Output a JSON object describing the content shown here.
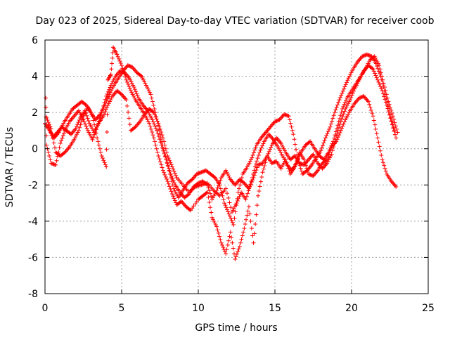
{
  "chart_data": {
    "type": "scatter",
    "title": "Day 023 of 2025, Sidereal Day-to-day VTEC variation (SDTVAR) for receiver coob",
    "xlabel": "GPS time / hours",
    "ylabel": "SDTVAR / TECUs",
    "xlim": [
      0,
      25
    ],
    "ylim": [
      -8,
      6
    ],
    "x_ticks": [
      0,
      5,
      10,
      15,
      20,
      25
    ],
    "y_ticks": [
      -8,
      -6,
      -4,
      -2,
      0,
      2,
      4,
      6
    ],
    "x_tick_labels": [
      "0",
      "5",
      "10",
      "15",
      "20",
      "25"
    ],
    "y_tick_labels": [
      "-8",
      "-6",
      "-4",
      "-2",
      "0",
      "2",
      "4",
      "6"
    ],
    "grid": true,
    "legend": "none",
    "marker": "+",
    "color": "#ff0000",
    "series": [
      {
        "values": [
          [
            0.0,
            1.4
          ],
          [
            0.3,
            1.0
          ],
          [
            0.6,
            0.6
          ],
          [
            0.9,
            0.9
          ],
          [
            1.2,
            1.4
          ],
          [
            1.5,
            1.8
          ],
          [
            1.8,
            2.2
          ],
          [
            2.1,
            2.4
          ],
          [
            2.4,
            2.6
          ],
          [
            2.7,
            2.4
          ],
          [
            3.0,
            2.0
          ],
          [
            3.3,
            1.6
          ],
          [
            3.6,
            1.9
          ],
          [
            3.9,
            2.4
          ],
          [
            4.2,
            3.0
          ],
          [
            4.5,
            3.5
          ],
          [
            4.8,
            3.9
          ],
          [
            5.1,
            4.3
          ],
          [
            5.4,
            4.6
          ],
          [
            5.7,
            4.5
          ],
          [
            6.0,
            4.2
          ],
          [
            6.3,
            4.0
          ],
          [
            6.6,
            3.5
          ],
          [
            6.9,
            3.0
          ],
          [
            7.2,
            2.0
          ],
          [
            7.5,
            0.8
          ],
          [
            7.8,
            -0.2
          ],
          [
            8.1,
            -1.2
          ],
          [
            8.4,
            -2.2
          ],
          [
            8.7,
            -2.7
          ],
          [
            9.0,
            -2.3
          ],
          [
            9.3,
            -1.9
          ],
          [
            9.6,
            -1.7
          ],
          [
            9.9,
            -1.4
          ],
          [
            10.2,
            -1.3
          ],
          [
            10.5,
            -1.2
          ],
          [
            10.8,
            -1.4
          ],
          [
            11.1,
            -1.6
          ],
          [
            11.4,
            -2.0
          ],
          [
            11.7,
            -3.0
          ],
          [
            12.0,
            -3.6
          ],
          [
            12.3,
            -4.2
          ],
          [
            12.6,
            -2.4
          ],
          [
            12.9,
            -1.4
          ],
          [
            13.2,
            -1.0
          ],
          [
            13.5,
            -0.5
          ],
          [
            13.8,
            0.2
          ],
          [
            14.1,
            0.6
          ],
          [
            14.4,
            0.9
          ],
          [
            14.7,
            1.2
          ],
          [
            15.0,
            1.5
          ],
          [
            15.3,
            1.6
          ],
          [
            15.6,
            1.9
          ],
          [
            15.9,
            1.8
          ],
          [
            16.2,
            0.8
          ],
          [
            16.5,
            -0.6
          ],
          [
            16.8,
            -1.4
          ],
          [
            17.1,
            -1.2
          ],
          [
            17.4,
            -0.9
          ],
          [
            17.7,
            -0.5
          ],
          [
            18.0,
            -0.1
          ],
          [
            18.3,
            0.6
          ],
          [
            18.6,
            1.2
          ],
          [
            18.9,
            2.0
          ],
          [
            19.2,
            2.7
          ],
          [
            19.5,
            3.3
          ],
          [
            19.8,
            3.9
          ],
          [
            20.1,
            4.4
          ],
          [
            20.4,
            4.8
          ],
          [
            20.7,
            5.1
          ],
          [
            21.0,
            5.2
          ],
          [
            21.3,
            5.1
          ],
          [
            21.6,
            4.7
          ],
          [
            21.9,
            4.0
          ],
          [
            22.2,
            3.0
          ],
          [
            22.5,
            1.9
          ],
          [
            22.8,
            1.0
          ]
        ]
      },
      {
        "values": [
          [
            0.1,
            1.7
          ],
          [
            0.4,
            1.1
          ],
          [
            0.7,
            -0.2
          ],
          [
            1.0,
            -0.4
          ],
          [
            1.3,
            -0.2
          ],
          [
            1.6,
            0.1
          ],
          [
            1.9,
            0.5
          ],
          [
            2.2,
            1.0
          ],
          [
            2.5,
            1.8
          ],
          [
            2.8,
            2.3
          ],
          [
            3.1,
            1.8
          ],
          [
            3.4,
            0.6
          ],
          [
            3.7,
            -0.4
          ],
          [
            4.0,
            -1.0
          ],
          [
            4.1,
            3.8
          ],
          [
            4.3,
            4.1
          ],
          [
            4.45,
            5.6
          ],
          [
            4.7,
            5.2
          ],
          [
            5.0,
            4.6
          ],
          [
            5.3,
            3.8
          ],
          [
            5.6,
            3.2
          ],
          [
            5.9,
            2.7
          ],
          [
            6.2,
            2.3
          ],
          [
            6.5,
            1.9
          ],
          [
            6.8,
            1.4
          ],
          [
            7.1,
            0.6
          ],
          [
            7.4,
            -0.4
          ],
          [
            7.7,
            -1.2
          ],
          [
            8.0,
            -1.8
          ],
          [
            8.3,
            -2.5
          ],
          [
            8.6,
            -3.1
          ],
          [
            8.9,
            -2.9
          ],
          [
            9.2,
            -3.2
          ],
          [
            9.5,
            -3.4
          ],
          [
            10.0,
            -2.8
          ],
          [
            10.3,
            -2.6
          ],
          [
            10.6,
            -2.4
          ],
          [
            10.9,
            -3.8
          ],
          [
            11.2,
            -4.3
          ],
          [
            11.5,
            -5.2
          ],
          [
            11.8,
            -5.8
          ],
          [
            12.1,
            -4.6
          ],
          [
            12.4,
            -6.1
          ],
          [
            12.7,
            -5.4
          ],
          [
            13.0,
            -4.4
          ],
          [
            13.3,
            -3.2
          ],
          [
            13.6,
            -5.2
          ],
          [
            13.9,
            -2.6
          ],
          [
            14.2,
            -1.3
          ],
          [
            14.5,
            -0.4
          ],
          [
            14.8,
            -0.8
          ],
          [
            15.1,
            -0.7
          ],
          [
            15.4,
            -1.1
          ],
          [
            15.7,
            -0.6
          ],
          [
            16.0,
            -1.4
          ],
          [
            16.3,
            -1.0
          ],
          [
            16.6,
            -0.2
          ],
          [
            16.9,
            -0.6
          ],
          [
            17.2,
            -1.4
          ],
          [
            17.5,
            -1.5
          ],
          [
            17.8,
            -1.2
          ],
          [
            18.1,
            -0.8
          ],
          [
            18.4,
            -0.6
          ],
          [
            18.7,
            0.1
          ],
          [
            19.0,
            0.4
          ],
          [
            19.3,
            1.0
          ],
          [
            19.6,
            1.6
          ],
          [
            19.9,
            2.1
          ],
          [
            20.2,
            2.5
          ],
          [
            20.5,
            2.8
          ],
          [
            20.8,
            2.9
          ],
          [
            21.1,
            2.6
          ],
          [
            21.4,
            1.8
          ],
          [
            21.7,
            0.6
          ],
          [
            22.0,
            -0.6
          ],
          [
            22.3,
            -1.4
          ],
          [
            22.6,
            -1.8
          ],
          [
            22.9,
            -2.1
          ]
        ]
      },
      {
        "values": [
          [
            0.05,
            2.8
          ],
          [
            0.1,
            0.2
          ],
          [
            0.4,
            -0.8
          ],
          [
            0.7,
            -0.9
          ],
          [
            1.0,
            0.3
          ],
          [
            1.3,
            1.0
          ],
          [
            1.6,
            1.5
          ],
          [
            1.9,
            1.8
          ],
          [
            2.2,
            2.1
          ],
          [
            2.5,
            1.6
          ],
          [
            2.8,
            1.0
          ],
          [
            3.1,
            0.5
          ],
          [
            3.4,
            1.2
          ],
          [
            3.7,
            2.0
          ],
          [
            4.0,
            2.9
          ],
          [
            4.3,
            3.5
          ],
          [
            4.6,
            4.0
          ],
          [
            4.9,
            4.3
          ],
          [
            5.2,
            4.2
          ],
          [
            5.5,
            3.9
          ],
          [
            5.8,
            3.4
          ],
          [
            6.1,
            2.8
          ],
          [
            6.4,
            2.4
          ],
          [
            6.7,
            2.1
          ],
          [
            7.0,
            1.6
          ],
          [
            7.3,
            1.0
          ],
          [
            7.6,
            0.2
          ],
          [
            7.9,
            -0.6
          ],
          [
            8.2,
            -1.4
          ],
          [
            8.5,
            -2.0
          ],
          [
            8.8,
            -2.4
          ],
          [
            9.1,
            -2.7
          ],
          [
            9.4,
            -2.5
          ],
          [
            9.7,
            -2.1
          ],
          [
            10.0,
            -1.9
          ],
          [
            10.3,
            -1.8
          ],
          [
            10.6,
            -2.0
          ],
          [
            10.9,
            -2.8
          ],
          [
            11.2,
            -2.3
          ],
          [
            11.5,
            -1.6
          ],
          [
            11.8,
            -1.2
          ],
          [
            12.1,
            -1.7
          ],
          [
            12.4,
            -2.0
          ],
          [
            12.7,
            -1.7
          ],
          [
            13.0,
            -1.9
          ],
          [
            13.3,
            -2.2
          ],
          [
            13.6,
            -1.6
          ],
          [
            13.9,
            -0.9
          ],
          [
            14.2,
            -0.8
          ],
          [
            14.5,
            -0.4
          ],
          [
            14.8,
            0.2
          ],
          [
            15.1,
            0.6
          ],
          [
            15.4,
            0.3
          ],
          [
            15.7,
            -0.2
          ],
          [
            16.0,
            -0.6
          ],
          [
            16.3,
            -0.4
          ],
          [
            16.6,
            -0.8
          ],
          [
            16.9,
            -0.9
          ],
          [
            17.2,
            -0.6
          ],
          [
            17.5,
            -0.3
          ],
          [
            17.8,
            -0.8
          ],
          [
            18.1,
            -1.1
          ],
          [
            18.4,
            -0.8
          ],
          [
            18.7,
            -0.3
          ],
          [
            19.0,
            0.7
          ],
          [
            19.3,
            1.5
          ],
          [
            19.6,
            2.2
          ],
          [
            19.9,
            2.7
          ],
          [
            20.2,
            3.3
          ],
          [
            20.5,
            3.8
          ],
          [
            20.8,
            4.3
          ],
          [
            21.1,
            4.6
          ],
          [
            21.4,
            4.4
          ],
          [
            21.7,
            3.8
          ],
          [
            22.0,
            3.2
          ],
          [
            22.3,
            2.4
          ],
          [
            22.6,
            1.5
          ],
          [
            22.9,
            0.6
          ]
        ]
      },
      {
        "values": [
          [
            0.2,
            1.3
          ],
          [
            0.5,
            0.6
          ],
          [
            0.8,
            0.9
          ],
          [
            1.1,
            1.2
          ],
          [
            1.4,
            1.0
          ],
          [
            1.7,
            0.8
          ],
          [
            2.0,
            1.1
          ],
          [
            2.3,
            1.7
          ],
          [
            2.6,
            2.1
          ],
          [
            2.9,
            1.4
          ],
          [
            3.2,
            0.9
          ],
          [
            3.5,
            1.4
          ],
          [
            3.8,
            1.8
          ],
          [
            4.1,
            2.4
          ],
          [
            4.4,
            2.9
          ],
          [
            4.7,
            3.2
          ],
          [
            5.0,
            3.0
          ],
          [
            5.3,
            2.7
          ],
          [
            5.6,
            1.0
          ],
          [
            5.9,
            1.2
          ],
          [
            6.2,
            1.5
          ],
          [
            6.5,
            1.9
          ],
          [
            6.8,
            2.2
          ],
          [
            7.1,
            2.0
          ],
          [
            7.4,
            1.4
          ],
          [
            7.7,
            0.6
          ],
          [
            8.0,
            -0.4
          ],
          [
            8.3,
            -1.0
          ],
          [
            8.6,
            -1.6
          ],
          [
            9.0,
            -2.0
          ],
          [
            9.4,
            -2.4
          ],
          [
            9.8,
            -2.1
          ],
          [
            10.2,
            -2.0
          ],
          [
            10.6,
            -1.9
          ],
          [
            11.0,
            -2.3
          ],
          [
            11.4,
            -2.6
          ],
          [
            11.8,
            -2.2
          ],
          [
            12.2,
            -3.5
          ],
          [
            12.5,
            -3.0
          ],
          [
            12.8,
            -2.4
          ],
          [
            13.1,
            -2.8
          ],
          [
            13.4,
            -2.0
          ],
          [
            13.7,
            -1.0
          ],
          [
            14.0,
            -0.2
          ],
          [
            14.3,
            0.4
          ],
          [
            14.6,
            0.8
          ],
          [
            14.9,
            0.5
          ],
          [
            15.2,
            0.1
          ],
          [
            15.5,
            -0.4
          ],
          [
            15.8,
            -0.9
          ],
          [
            16.1,
            -1.2
          ],
          [
            16.4,
            -0.8
          ],
          [
            16.7,
            -0.2
          ],
          [
            17.0,
            0.2
          ],
          [
            17.3,
            0.4
          ],
          [
            17.6,
            0.0
          ],
          [
            17.9,
            -0.4
          ],
          [
            18.2,
            -0.6
          ],
          [
            18.5,
            -0.2
          ],
          [
            18.8,
            0.4
          ],
          [
            19.1,
            1.3
          ],
          [
            19.4,
            2.2
          ],
          [
            19.7,
            2.8
          ],
          [
            20.0,
            3.2
          ],
          [
            20.3,
            3.6
          ],
          [
            20.6,
            4.0
          ],
          [
            20.9,
            4.4
          ],
          [
            21.2,
            4.9
          ],
          [
            21.5,
            5.1
          ],
          [
            21.8,
            4.6
          ],
          [
            22.1,
            3.6
          ],
          [
            22.4,
            2.6
          ],
          [
            22.7,
            1.8
          ],
          [
            23.0,
            0.9
          ]
        ]
      }
    ]
  }
}
